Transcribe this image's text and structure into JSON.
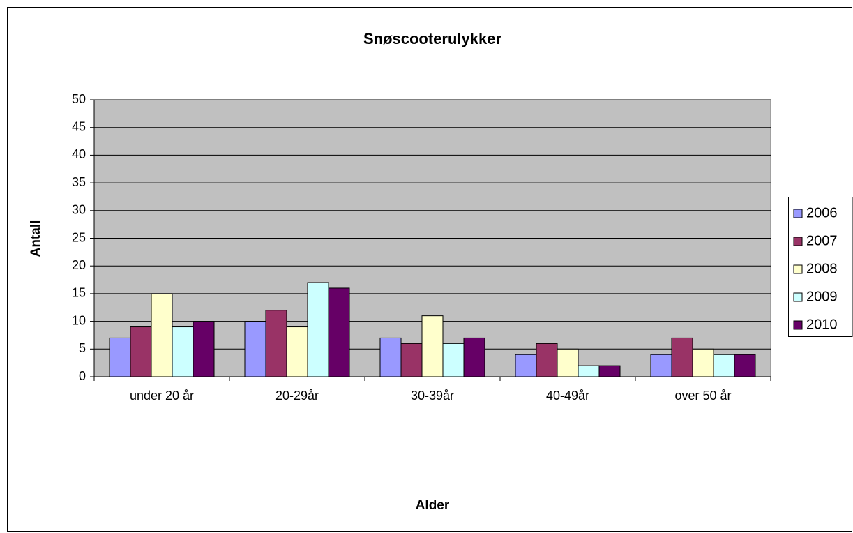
{
  "chart_data": {
    "type": "bar",
    "title": "Snøscooterulykker",
    "xlabel": "Alder",
    "ylabel": "Antall",
    "categories": [
      "under 20 år",
      "20-29år",
      "30-39år",
      "40-49år",
      "over 50 år"
    ],
    "series": [
      {
        "name": "2006",
        "color": "#9999ff",
        "values": [
          7,
          10,
          7,
          4,
          4
        ]
      },
      {
        "name": "2007",
        "color": "#993366",
        "values": [
          9,
          12,
          6,
          6,
          7
        ]
      },
      {
        "name": "2008",
        "color": "#ffffcc",
        "values": [
          15,
          9,
          11,
          5,
          5
        ]
      },
      {
        "name": "2009",
        "color": "#ccffff",
        "values": [
          9,
          17,
          6,
          2,
          4
        ]
      },
      {
        "name": "2010",
        "color": "#660066",
        "values": [
          10,
          16,
          7,
          2,
          4
        ]
      }
    ],
    "ylim": [
      0,
      50
    ],
    "yticks": [
      0,
      5,
      10,
      15,
      20,
      25,
      30,
      35,
      40,
      45,
      50
    ],
    "grid": true,
    "legend": "right"
  }
}
